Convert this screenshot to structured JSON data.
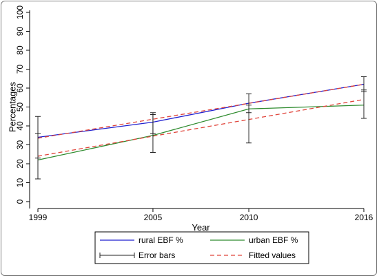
{
  "chart_data": {
    "type": "line",
    "x": [
      1999,
      2005,
      2010,
      2016
    ],
    "xlabel": "Year",
    "ylabel": "Percentages",
    "xlim": [
      1999,
      2016
    ],
    "ylim": [
      0,
      100
    ],
    "yticks": [
      0,
      10,
      20,
      30,
      40,
      50,
      60,
      70,
      80,
      90,
      100
    ],
    "xticks": [
      1999,
      2005,
      2010,
      2016
    ],
    "grid": false,
    "legend_position": "bottom",
    "series": [
      {
        "name": "rural EBF %",
        "color": "#1f1fcf",
        "style": "solid",
        "values": [
          34,
          42,
          52,
          62
        ]
      },
      {
        "name": "urban EBF %",
        "color": "#2e8b2e",
        "style": "solid",
        "values": [
          22,
          35,
          49,
          51
        ]
      },
      {
        "name": "Fitted values",
        "color": "#e0443a",
        "style": "dashed",
        "segments": [
          {
            "x": [
              1999,
              2016
            ],
            "y": [
              33.5,
              62
            ]
          },
          {
            "x": [
              1999,
              2016
            ],
            "y": [
              24,
              54
            ]
          }
        ]
      }
    ],
    "error_bars": {
      "name": "Error bars",
      "color": "#222222",
      "bars": [
        {
          "x": 1999,
          "low": 23,
          "high": 45
        },
        {
          "x": 1999,
          "low": 12,
          "high": 36
        },
        {
          "x": 2005,
          "low": 36,
          "high": 47
        },
        {
          "x": 2005,
          "low": 26,
          "high": 46
        },
        {
          "x": 2010,
          "low": 47,
          "high": 57
        },
        {
          "x": 2010,
          "low": 31,
          "high": 51
        },
        {
          "x": 2016,
          "low": 58,
          "high": 66
        },
        {
          "x": 2016,
          "low": 44,
          "high": 59
        }
      ]
    },
    "legend": [
      {
        "label": "rural EBF %",
        "kind": "line",
        "color": "#1f1fcf"
      },
      {
        "label": "urban EBF %",
        "kind": "line",
        "color": "#2e8b2e"
      },
      {
        "label": "Error bars",
        "kind": "errorbar",
        "color": "#222222"
      },
      {
        "label": "Fitted values",
        "kind": "dashed",
        "color": "#e0443a"
      }
    ]
  }
}
